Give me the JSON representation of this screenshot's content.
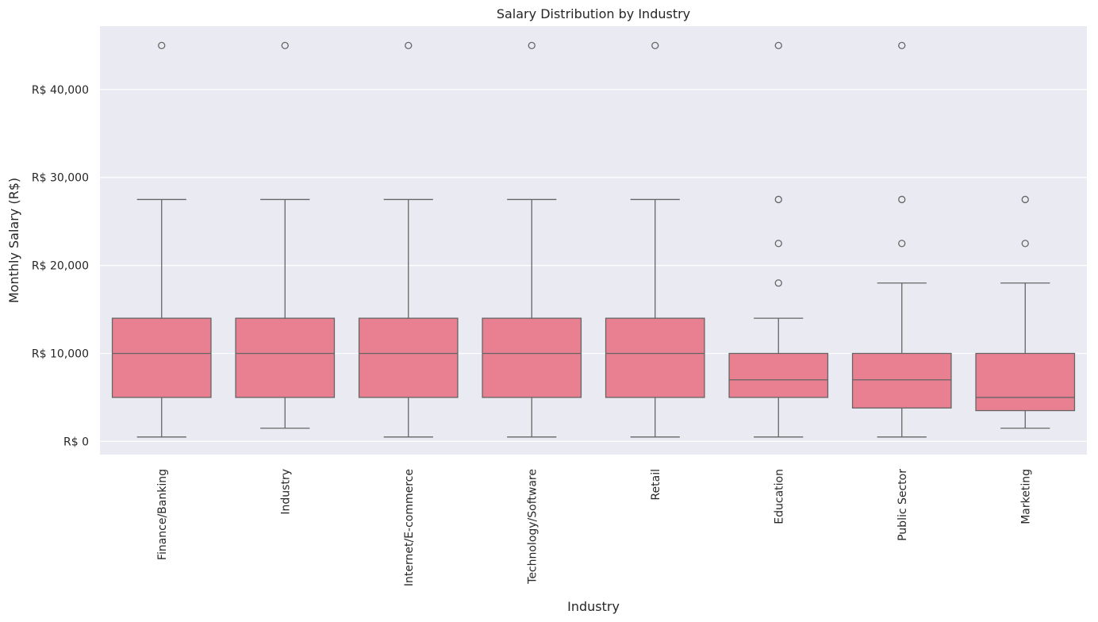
{
  "chart_data": {
    "type": "box",
    "title": "Salary Distribution by Industry",
    "xlabel": "Industry",
    "ylabel": "Monthly Salary (R$)",
    "ylim": [
      -1500,
      47200
    ],
    "yticks": [
      0,
      10000,
      20000,
      30000,
      40000
    ],
    "ytick_labels": [
      "R$ 0",
      "R$ 10,000",
      "R$ 20,000",
      "R$ 30,000",
      "R$ 40,000"
    ],
    "grid": true,
    "colors": {
      "box": "#e88092",
      "line": "#656565",
      "background": "#eaeaf2",
      "grid": "#ffffff"
    },
    "categories": [
      "Finance/Banking",
      "Industry",
      "Internet/E-commerce",
      "Technology/Software",
      "Retail",
      "Education",
      "Public Sector",
      "Marketing"
    ],
    "boxes": [
      {
        "whisker_low": 500,
        "q1": 5000,
        "median": 10000,
        "q3": 14000,
        "whisker_high": 27500,
        "outliers": [
          45000
        ]
      },
      {
        "whisker_low": 1500,
        "q1": 5000,
        "median": 10000,
        "q3": 14000,
        "whisker_high": 27500,
        "outliers": [
          45000
        ]
      },
      {
        "whisker_low": 500,
        "q1": 5000,
        "median": 10000,
        "q3": 14000,
        "whisker_high": 27500,
        "outliers": [
          45000
        ]
      },
      {
        "whisker_low": 500,
        "q1": 5000,
        "median": 10000,
        "q3": 14000,
        "whisker_high": 27500,
        "outliers": [
          45000
        ]
      },
      {
        "whisker_low": 500,
        "q1": 5000,
        "median": 10000,
        "q3": 14000,
        "whisker_high": 27500,
        "outliers": [
          45000
        ]
      },
      {
        "whisker_low": 500,
        "q1": 5000,
        "median": 7000,
        "q3": 10000,
        "whisker_high": 14000,
        "outliers": [
          18000,
          22500,
          27500,
          45000
        ]
      },
      {
        "whisker_low": 500,
        "q1": 3800,
        "median": 7000,
        "q3": 10000,
        "whisker_high": 18000,
        "outliers": [
          22500,
          27500,
          45000
        ]
      },
      {
        "whisker_low": 1500,
        "q1": 3500,
        "median": 5000,
        "q3": 10000,
        "whisker_high": 18000,
        "outliers": [
          22500,
          27500
        ]
      }
    ]
  }
}
